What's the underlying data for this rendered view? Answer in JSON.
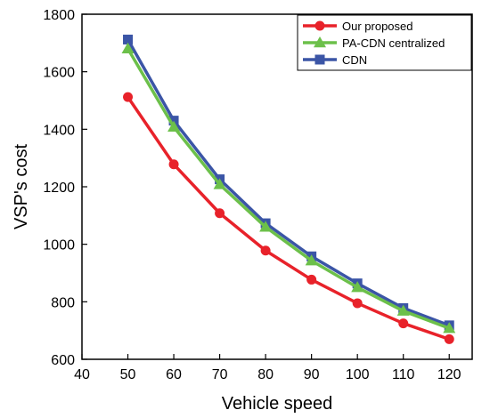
{
  "chart_data": {
    "type": "line",
    "xlabel": "Vehicle speed",
    "ylabel": "VSP's cost",
    "xlim": [
      40,
      125
    ],
    "ylim": [
      600,
      1800
    ],
    "xticks": [
      40,
      50,
      60,
      70,
      80,
      90,
      100,
      110,
      120
    ],
    "yticks": [
      600,
      800,
      1000,
      1200,
      1400,
      1600,
      1800
    ],
    "grid": false,
    "legend_position": "top-right",
    "x": [
      50,
      60,
      70,
      80,
      90,
      100,
      110,
      120
    ],
    "series": [
      {
        "name": "Our proposed",
        "color": "#e8222a",
        "marker": "circle",
        "values": [
          1512,
          1278,
          1108,
          978,
          877,
          795,
          725,
          670
        ]
      },
      {
        "name": "PA-CDN centralized",
        "color": "#6cc04a",
        "marker": "triangle",
        "values": [
          1680,
          1408,
          1208,
          1060,
          943,
          850,
          768,
          708
        ]
      },
      {
        "name": "CDN",
        "color": "#3b55a6",
        "marker": "square",
        "values": [
          1712,
          1430,
          1226,
          1073,
          958,
          864,
          778,
          718
        ]
      }
    ]
  }
}
